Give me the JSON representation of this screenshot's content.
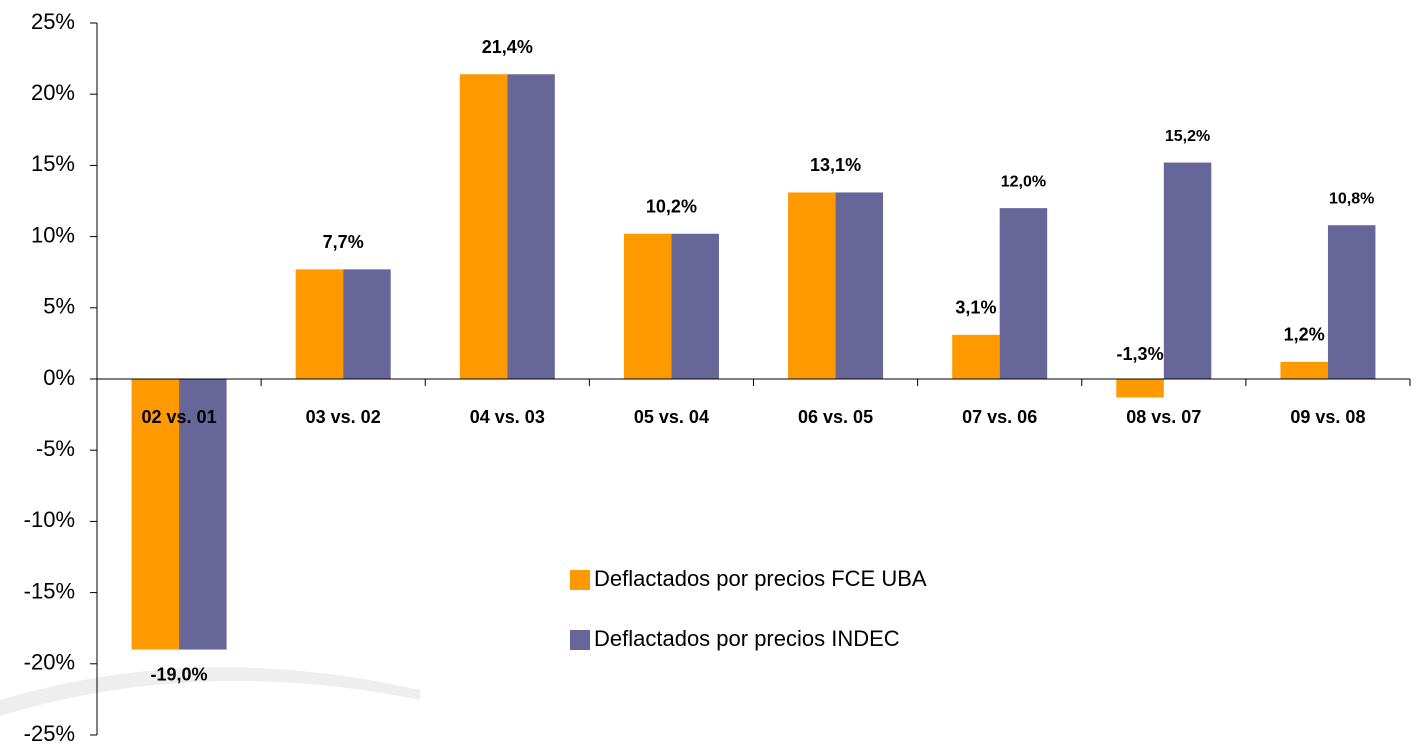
{
  "chart_data": {
    "type": "bar",
    "categories": [
      "02 vs. 01",
      "03 vs. 02",
      "04 vs. 03",
      "05 vs. 04",
      "06 vs. 05",
      "07 vs. 06",
      "08 vs. 07",
      "09 vs. 08"
    ],
    "series": [
      {
        "name": "Deflactados por precios FCE UBA",
        "color": "#ff9900",
        "values": [
          -19.0,
          7.7,
          21.4,
          10.2,
          13.1,
          3.1,
          -1.3,
          1.2
        ],
        "value_labels": [
          "-19,0%",
          "7,7%",
          "21,4%",
          "10,2%",
          "13,1%",
          "3,1%",
          "-1,3%",
          "1,2%"
        ]
      },
      {
        "name": "Deflactados por precios INDEC",
        "color": "#666699",
        "values": [
          -19.0,
          7.7,
          21.4,
          10.2,
          13.1,
          12.0,
          15.2,
          10.8
        ],
        "value_labels": [
          null,
          null,
          null,
          null,
          null,
          "12,0%",
          "15,2%",
          "10,8%"
        ]
      }
    ],
    "ylim": [
      -25,
      25
    ],
    "yticks": [
      {
        "value": -25,
        "label": "-25%"
      },
      {
        "value": -20,
        "label": "-20%"
      },
      {
        "value": -15,
        "label": "-15%"
      },
      {
        "value": -10,
        "label": "-10%"
      },
      {
        "value": -5,
        "label": "-5%"
      },
      {
        "value": 0,
        "label": "0%"
      },
      {
        "value": 5,
        "label": "5%"
      },
      {
        "value": 10,
        "label": "10%"
      },
      {
        "value": 15,
        "label": "15%"
      },
      {
        "value": 20,
        "label": "20%"
      },
      {
        "value": 25,
        "label": "25%"
      }
    ],
    "legend": "center"
  }
}
